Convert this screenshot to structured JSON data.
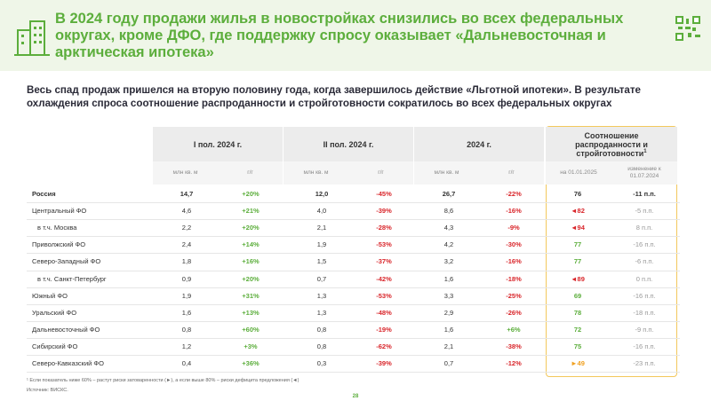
{
  "header": {
    "title": "В 2024 году продажи жилья в новостройках снизились во всех федеральных округах, кроме ДФО, где поддержку спросу оказывает «Дальневосточная и арктическая ипотека»",
    "subtitle": "Весь спад продаж пришелся на вторую половину года, когда завершилось действие «Льготной ипотеки». В результате охлаждения спроса соотношение распроданности и стройготовности сократилось во всех федеральных округах"
  },
  "table": {
    "groups": [
      "I пол. 2024 г.",
      "II пол. 2024 г.",
      "2024 г.",
      "Соотношение распроданности и стройготовности"
    ],
    "ratio_note": "1",
    "subheaders": [
      "млн кв. м",
      "г/г",
      "млн кв. м",
      "г/г",
      "млн кв. м",
      "г/г",
      "на 01.01.2025",
      "изменение к 01.07.2024"
    ],
    "rows": [
      [
        "Россия",
        "14,7",
        "+20%",
        "12,0",
        "-45%",
        "26,7",
        "-22%",
        "76",
        "-11 п.п."
      ],
      [
        "Центральный ФО",
        "4,6",
        "+21%",
        "4,0",
        "-39%",
        "8,6",
        "-16%",
        "◄82",
        "-5 п.п."
      ],
      [
        "в т.ч. Москва",
        "2,2",
        "+20%",
        "2,1",
        "-28%",
        "4,3",
        "-9%",
        "◄94",
        "8 п.п."
      ],
      [
        "Приволжский ФО",
        "2,4",
        "+14%",
        "1,9",
        "-53%",
        "4,2",
        "-30%",
        "77",
        "-16 п.п."
      ],
      [
        "Северо-Западный ФО",
        "1,8",
        "+16%",
        "1,5",
        "-37%",
        "3,2",
        "-16%",
        "77",
        "-6 п.п."
      ],
      [
        "в т.ч. Санкт-Петербург",
        "0,9",
        "+20%",
        "0,7",
        "-42%",
        "1,6",
        "-18%",
        "◄89",
        "0 п.п."
      ],
      [
        "Южный ФО",
        "1,9",
        "+31%",
        "1,3",
        "-53%",
        "3,3",
        "-25%",
        "69",
        "-16 п.п."
      ],
      [
        "Уральский ФО",
        "1,6",
        "+13%",
        "1,3",
        "-48%",
        "2,9",
        "-26%",
        "78",
        "-18 п.п."
      ],
      [
        "Дальневосточный ФО",
        "0,8",
        "+60%",
        "0,8",
        "-19%",
        "1,6",
        "+6%",
        "72",
        "-9 п.п."
      ],
      [
        "Сибирский ФО",
        "1,2",
        "+3%",
        "0,8",
        "-62%",
        "2,1",
        "-38%",
        "75",
        "-16 п.п."
      ],
      [
        "Северо-Кавказский ФО",
        "0,4",
        "+36%",
        "0,3",
        "-39%",
        "0,7",
        "-12%",
        "►49",
        "-23 п.п."
      ]
    ]
  },
  "footnote": "¹ Если показатель ниже 60% – растут риски затоваренности (►), а если выше 80% – риски дефицита предложения (◄)",
  "source": "Источник: ВИСКС.",
  "page_number": "28"
}
